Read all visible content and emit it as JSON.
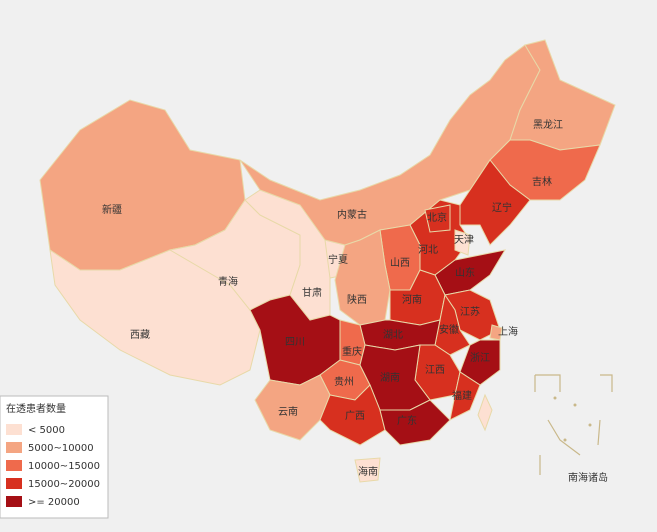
{
  "legend": {
    "title": "在透患者数量",
    "items": [
      {
        "label": "< 5000",
        "color": "#fde0d2"
      },
      {
        "label": "5000~10000",
        "color": "#f4a582"
      },
      {
        "label": "10000~15000",
        "color": "#ef6a4c"
      },
      {
        "label": "15000~20000",
        "color": "#d7301f"
      },
      {
        "label": ">= 20000",
        "color": "#a50f15"
      }
    ]
  },
  "provinces": [
    {
      "name": "新疆",
      "color": "#f4a582"
    },
    {
      "name": "西藏",
      "color": "#fde0d2"
    },
    {
      "name": "青海",
      "color": "#fde0d2"
    },
    {
      "name": "甘肃",
      "color": "#fde0d2"
    },
    {
      "name": "宁夏",
      "color": "#fde0d2"
    },
    {
      "name": "内蒙古",
      "color": "#f4a582"
    },
    {
      "name": "黑龙江",
      "color": "#f4a582"
    },
    {
      "name": "吉林",
      "color": "#ef6a4c"
    },
    {
      "name": "辽宁",
      "color": "#d7301f"
    },
    {
      "name": "河北",
      "color": "#d7301f"
    },
    {
      "name": "北京",
      "color": "#d7301f"
    },
    {
      "name": "天津",
      "color": "#fde0d2"
    },
    {
      "name": "山西",
      "color": "#ef6a4c"
    },
    {
      "name": "陕西",
      "color": "#f4a582"
    },
    {
      "name": "山东",
      "color": "#a50f15"
    },
    {
      "name": "河南",
      "color": "#d7301f"
    },
    {
      "name": "江苏",
      "color": "#d7301f"
    },
    {
      "name": "安徽",
      "color": "#d7301f"
    },
    {
      "name": "上海",
      "color": "#f4a582"
    },
    {
      "name": "浙江",
      "color": "#a50f15"
    },
    {
      "name": "江西",
      "color": "#d7301f"
    },
    {
      "name": "福建",
      "color": "#d7301f"
    },
    {
      "name": "湖北",
      "color": "#a50f15"
    },
    {
      "name": "重庆",
      "color": "#ef6a4c"
    },
    {
      "name": "四川",
      "color": "#a50f15"
    },
    {
      "name": "贵州",
      "color": "#ef6a4c"
    },
    {
      "name": "湖南",
      "color": "#a50f15"
    },
    {
      "name": "云南",
      "color": "#f4a582"
    },
    {
      "name": "广西",
      "color": "#d7301f"
    },
    {
      "name": "广东",
      "color": "#a50f15"
    },
    {
      "name": "海南",
      "color": "#fde0d2"
    }
  ],
  "inset_label": "南海诸岛"
}
